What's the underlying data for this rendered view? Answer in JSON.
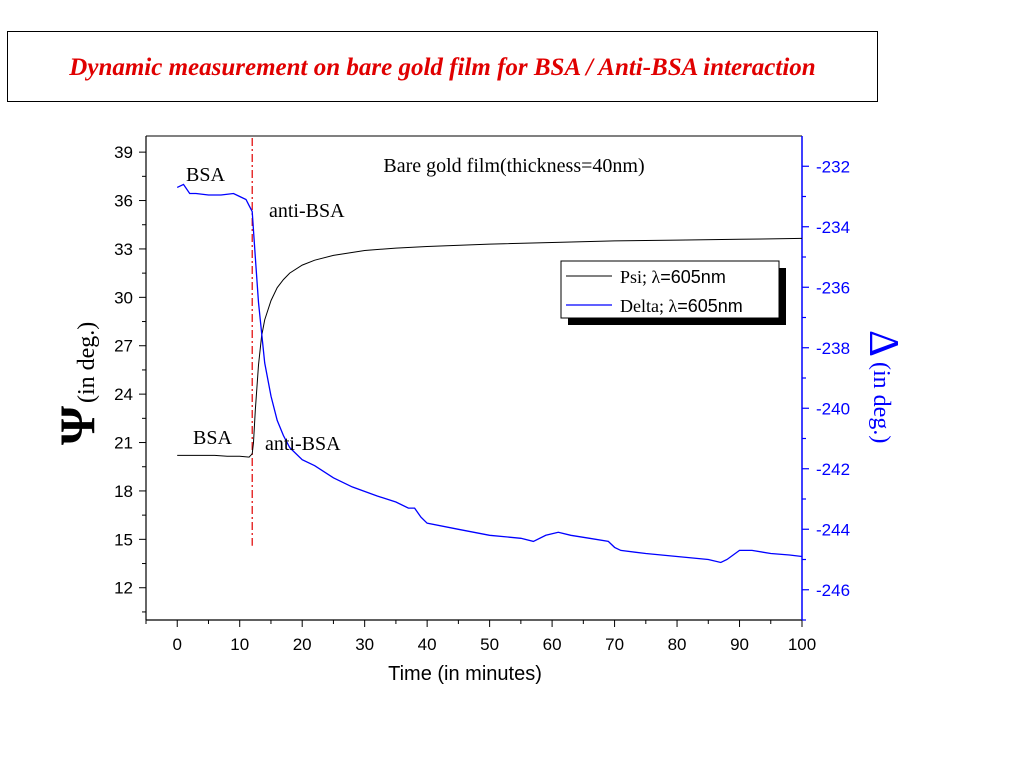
{
  "slide_title": "Dynamic measurement on bare gold film for BSA / Anti-BSA interaction",
  "chart_data": {
    "type": "line",
    "title": "Bare gold film(thickness=40nm)",
    "xlabel": "Time (in minutes)",
    "ylabel_left_symbol": "Ψ",
    "ylabel_left_text": "(in deg.)",
    "ylabel_right_symbol": "Δ",
    "ylabel_right_text": "(in deg.)",
    "xlim": [
      -5,
      100
    ],
    "ylim_left": [
      10,
      40
    ],
    "ylim_right": [
      -247,
      -231
    ],
    "x_ticks": [
      "0",
      "10",
      "20",
      "30",
      "40",
      "50",
      "60",
      "70",
      "80",
      "90",
      "100"
    ],
    "y_ticks_left": [
      "12",
      "15",
      "18",
      "21",
      "24",
      "27",
      "30",
      "33",
      "36",
      "39"
    ],
    "y_ticks_right": [
      "-246",
      "-244",
      "-242",
      "-240",
      "-238",
      "-236",
      "-234",
      "-232"
    ],
    "legend": [
      {
        "name": "Psi; ",
        "symbol": "λ",
        "suffix": "=605nm",
        "color": "#000000"
      },
      {
        "name": "Delta; ",
        "symbol": "λ",
        "suffix": "=605nm",
        "color": "#0000ff"
      }
    ],
    "legend_position": "upper-right",
    "annotations": [
      {
        "text": "BSA",
        "near": "delta-baseline"
      },
      {
        "text": "anti-BSA",
        "near": "delta-injection"
      },
      {
        "text": "BSA",
        "near": "psi-baseline"
      },
      {
        "text": "anti-BSA",
        "near": "psi-injection"
      }
    ],
    "injection_time": 12,
    "series": [
      {
        "name": "Psi; λ=605nm",
        "axis": "left",
        "color": "#000000",
        "x": [
          0,
          2,
          4,
          6,
          8,
          10,
          11.5,
          12,
          12.2,
          12.5,
          13,
          13.5,
          14,
          15,
          16,
          17,
          18,
          20,
          22,
          25,
          30,
          35,
          40,
          50,
          60,
          70,
          80,
          90,
          100
        ],
        "y": [
          20.2,
          20.2,
          20.2,
          20.2,
          20.15,
          20.15,
          20.1,
          20.3,
          21.0,
          23.0,
          25.8,
          27.6,
          28.6,
          29.8,
          30.6,
          31.1,
          31.5,
          32.0,
          32.3,
          32.6,
          32.9,
          33.05,
          33.15,
          33.3,
          33.4,
          33.5,
          33.55,
          33.6,
          33.65
        ]
      },
      {
        "name": "Delta; λ=605nm",
        "axis": "right",
        "color": "#0000ff",
        "x": [
          0,
          1,
          2,
          3,
          5,
          7,
          9,
          10,
          11,
          11.5,
          12,
          12.5,
          13,
          14,
          15,
          16,
          17,
          18,
          20,
          22,
          25,
          28,
          32,
          35,
          37,
          38,
          39,
          40,
          45,
          50,
          55,
          57,
          59,
          61,
          63,
          66,
          69,
          70,
          71,
          75,
          80,
          85,
          87,
          88,
          90,
          92,
          95,
          98,
          100
        ],
        "y": [
          -232.7,
          -232.6,
          -232.9,
          -232.9,
          -232.95,
          -232.95,
          -232.9,
          -233.0,
          -233.1,
          -233.3,
          -233.5,
          -235.0,
          -236.5,
          -238.5,
          -239.6,
          -240.4,
          -240.9,
          -241.3,
          -241.7,
          -241.9,
          -242.3,
          -242.6,
          -242.9,
          -243.1,
          -243.3,
          -243.3,
          -243.6,
          -243.8,
          -244.0,
          -244.2,
          -244.3,
          -244.4,
          -244.2,
          -244.1,
          -244.2,
          -244.3,
          -244.4,
          -244.6,
          -244.7,
          -244.8,
          -244.9,
          -245.0,
          -245.1,
          -245.0,
          -244.7,
          -244.7,
          -244.8,
          -244.85,
          -244.9
        ]
      }
    ]
  }
}
